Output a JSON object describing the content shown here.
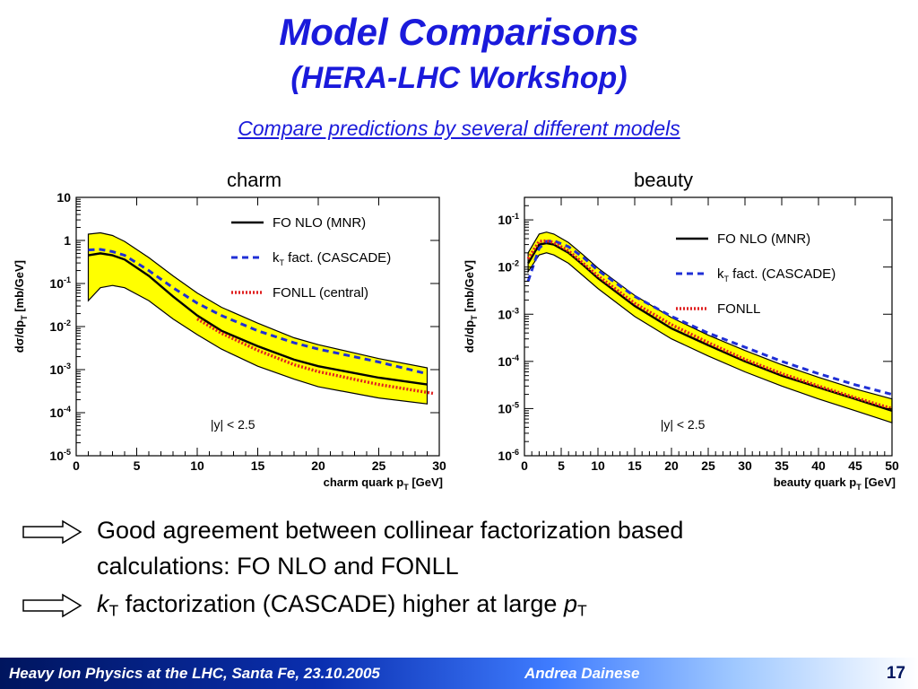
{
  "slide": {
    "title": "Model Comparisons",
    "subtitle": "(HERA-LHC Workshop)",
    "link": "Compare predictions by several different models",
    "footer_left": "Heavy Ion Physics at the LHC, Santa Fe, 23.10.2005",
    "footer_center": "Andrea Dainese",
    "page_number": "17",
    "bullet1_line1": "Good agreement between collinear factorization based",
    "bullet1_line2": "calculations: FO NLO and FONLL",
    "bullet2_k": "k",
    "bullet2_T": "T",
    "bullet2_mid": " factorization (CASCADE) higher at large ",
    "bullet2_p": "p",
    "bullet2_T2": "T"
  },
  "colors": {
    "title": "#1a1adb",
    "band": "#ffff00",
    "nlo": "#000000",
    "cascade": "#1f2fd6",
    "fonll": "#e02020"
  },
  "chart_data": [
    {
      "type": "line",
      "panel_label": "charm",
      "xlabel": "charm quark p_T [GeV]",
      "ylabel": "dσ/dp_T [mb/GeV]",
      "xlim": [
        0,
        30
      ],
      "ylim": [
        1e-05,
        10
      ],
      "yscale": "log",
      "xticks": [
        0,
        5,
        10,
        15,
        20,
        25,
        30
      ],
      "xtick_labels": [
        "0",
        "5",
        "10",
        "15",
        "20",
        "25",
        "30"
      ],
      "yticks": [
        1e-05,
        0.0001,
        0.001,
        0.01,
        0.1,
        1,
        10
      ],
      "ytick_labels": [
        "10-5",
        "10-4",
        "10-3",
        "10-2",
        "10-1",
        "1",
        "10"
      ],
      "annotation": "|y| < 2.5",
      "legend_position": "top-right",
      "series": [
        {
          "name": "FO NLO (MNR)",
          "style": "solid",
          "color": "#000000",
          "x": [
            1,
            2,
            3,
            4,
            6,
            8,
            10,
            12,
            15,
            18,
            20,
            25,
            29
          ],
          "y": [
            0.45,
            0.5,
            0.45,
            0.36,
            0.15,
            0.05,
            0.018,
            0.008,
            0.0035,
            0.0017,
            0.0012,
            0.00065,
            0.00045
          ]
        },
        {
          "name": "k_T fact. (CASCADE)",
          "style": "dashed",
          "color": "#1f2fd6",
          "x": [
            1,
            2,
            3,
            4,
            6,
            8,
            10,
            12,
            15,
            18,
            20,
            25,
            29
          ],
          "y": [
            0.6,
            0.62,
            0.55,
            0.45,
            0.2,
            0.08,
            0.035,
            0.018,
            0.008,
            0.0042,
            0.003,
            0.0015,
            0.0008
          ]
        },
        {
          "name": "FONLL (central)",
          "style": "dotted",
          "color": "#e02020",
          "x": [
            10,
            12,
            15,
            18,
            20,
            25,
            29.5
          ],
          "y": [
            0.015,
            0.007,
            0.0028,
            0.0013,
            0.0009,
            0.00045,
            0.00028
          ]
        }
      ],
      "band": {
        "name": "FO NLO (MNR) uncertainty",
        "x": [
          1,
          2,
          3,
          4,
          6,
          8,
          10,
          12,
          15,
          18,
          20,
          25,
          29
        ],
        "upper": [
          1.4,
          1.5,
          1.3,
          0.95,
          0.4,
          0.15,
          0.06,
          0.028,
          0.012,
          0.0055,
          0.0038,
          0.0018,
          0.0011
        ],
        "lower": [
          0.04,
          0.08,
          0.09,
          0.08,
          0.04,
          0.015,
          0.0065,
          0.003,
          0.0012,
          0.0006,
          0.0004,
          0.00022,
          0.00016
        ]
      }
    },
    {
      "type": "line",
      "panel_label": "beauty",
      "xlabel": "beauty quark p_T [GeV]",
      "ylabel": "dσ/dp_T [mb/GeV]",
      "xlim": [
        0,
        50
      ],
      "ylim": [
        1e-06,
        0.3
      ],
      "yscale": "log",
      "xticks": [
        0,
        5,
        10,
        15,
        20,
        25,
        30,
        35,
        40,
        45,
        50
      ],
      "xtick_labels": [
        "0",
        "5",
        "10",
        "15",
        "20",
        "25",
        "30",
        "35",
        "40",
        "45",
        "50"
      ],
      "yticks": [
        1e-06,
        1e-05,
        0.0001,
        0.001,
        0.01,
        0.1
      ],
      "ytick_labels": [
        "10-6",
        "10-5",
        "10-4",
        "10-3",
        "10-2",
        "10-1"
      ],
      "annotation": "|y| < 2.5",
      "legend_position": "top-right",
      "series": [
        {
          "name": "FO NLO (MNR)",
          "style": "solid",
          "color": "#000000",
          "x": [
            0.5,
            2,
            3,
            4,
            6,
            8,
            10,
            15,
            20,
            25,
            30,
            35,
            40,
            45,
            50
          ],
          "y": [
            0.012,
            0.03,
            0.032,
            0.03,
            0.02,
            0.011,
            0.0058,
            0.0015,
            0.0005,
            0.00022,
            0.0001,
            5e-05,
            2.8e-05,
            1.6e-05,
            9e-06
          ]
        },
        {
          "name": "k_T fact. (CASCADE)",
          "style": "dashed",
          "color": "#1f2fd6",
          "x": [
            0.5,
            2,
            3,
            4,
            6,
            8,
            10,
            15,
            20,
            25,
            30,
            35,
            40,
            45,
            50
          ],
          "y": [
            0.005,
            0.025,
            0.035,
            0.036,
            0.027,
            0.016,
            0.0085,
            0.0024,
            0.0009,
            0.0004,
            0.0002,
            0.0001,
            5.5e-05,
            3.2e-05,
            2e-05
          ]
        },
        {
          "name": "FONLL",
          "style": "dotted",
          "color": "#e02020",
          "x": [
            0.5,
            2,
            3,
            4,
            6,
            8,
            10,
            15,
            20,
            25,
            30,
            35,
            40,
            45,
            50
          ],
          "y": [
            0.015,
            0.035,
            0.036,
            0.033,
            0.022,
            0.012,
            0.0065,
            0.0017,
            0.0006,
            0.00025,
            0.00011,
            5.5e-05,
            3e-05,
            1.7e-05,
            1e-05
          ]
        }
      ],
      "band": {
        "name": "FO NLO (MNR) uncertainty",
        "x": [
          0.5,
          2,
          3,
          4,
          6,
          8,
          10,
          15,
          20,
          25,
          30,
          35,
          40,
          45,
          50
        ],
        "upper": [
          0.02,
          0.05,
          0.055,
          0.05,
          0.033,
          0.018,
          0.0095,
          0.0025,
          0.00085,
          0.00036,
          0.00017,
          8.5e-05,
          4.6e-05,
          2.6e-05,
          1.6e-05
        ],
        "lower": [
          0.008,
          0.018,
          0.02,
          0.018,
          0.012,
          0.0065,
          0.0035,
          0.0009,
          0.0003,
          0.00013,
          6e-05,
          3e-05,
          1.6e-05,
          9e-06,
          5e-06
        ]
      }
    }
  ]
}
